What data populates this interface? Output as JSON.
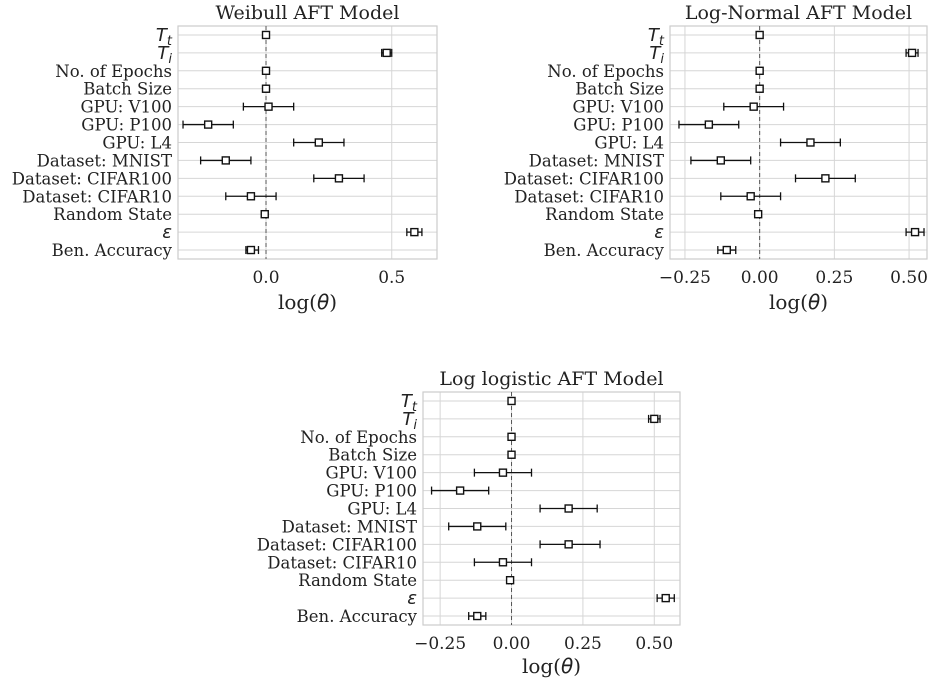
{
  "xlabel": {
    "prefix": "log(",
    "symbol": "θ",
    "suffix": ")"
  },
  "chart_data": [
    {
      "type": "scatter",
      "title": "Weibull AFT Model",
      "xlim": [
        -0.35,
        0.68
      ],
      "xticks": [
        "0.0",
        "0.5"
      ],
      "xtick_values": [
        0.0,
        0.5
      ],
      "categories": [
        {
          "label": "T",
          "sub": "t",
          "math": true
        },
        {
          "label": "T",
          "sub": "i",
          "math": true
        },
        {
          "label": "No. of Epochs"
        },
        {
          "label": "Batch Size"
        },
        {
          "label": "GPU: V100"
        },
        {
          "label": "GPU: P100"
        },
        {
          "label": "GPU: L4"
        },
        {
          "label": "Dataset: MNIST"
        },
        {
          "label": "Dataset: CIFAR100"
        },
        {
          "label": "Dataset: CIFAR10"
        },
        {
          "label": "Random State"
        },
        {
          "label": "ε",
          "math": true
        },
        {
          "label": "Ben. Accuracy"
        }
      ],
      "values": [
        0.0,
        0.48,
        0.0,
        0.0,
        0.01,
        -0.23,
        0.21,
        -0.16,
        0.29,
        -0.06,
        -0.005,
        0.59,
        -0.06
      ],
      "ci_low": [
        -0.005,
        0.46,
        -0.005,
        -0.005,
        -0.09,
        -0.33,
        0.11,
        -0.26,
        0.19,
        -0.16,
        -0.01,
        0.56,
        -0.08
      ],
      "ci_high": [
        0.005,
        0.5,
        0.005,
        0.005,
        0.11,
        -0.13,
        0.31,
        -0.06,
        0.39,
        0.04,
        0.0,
        0.62,
        -0.03
      ]
    },
    {
      "type": "scatter",
      "title": "Log-Normal AFT Model",
      "xlim": [
        -0.3,
        0.56
      ],
      "xticks": [
        "−0.25",
        "0.00",
        "0.25",
        "0.50"
      ],
      "xtick_values": [
        -0.25,
        0.0,
        0.25,
        0.5
      ],
      "categories": [
        {
          "label": "T",
          "sub": "t",
          "math": true
        },
        {
          "label": "T",
          "sub": "i",
          "math": true
        },
        {
          "label": "No. of Epochs"
        },
        {
          "label": "Batch Size"
        },
        {
          "label": "GPU: V100"
        },
        {
          "label": "GPU: P100"
        },
        {
          "label": "GPU: L4"
        },
        {
          "label": "Dataset: MNIST"
        },
        {
          "label": "Dataset: CIFAR100"
        },
        {
          "label": "Dataset: CIFAR10"
        },
        {
          "label": "Random State"
        },
        {
          "label": "ε",
          "math": true
        },
        {
          "label": "Ben. Accuracy"
        }
      ],
      "values": [
        0.0,
        0.51,
        0.0,
        0.0,
        -0.02,
        -0.17,
        0.17,
        -0.13,
        0.22,
        -0.03,
        -0.005,
        0.52,
        -0.11
      ],
      "ci_low": [
        -0.005,
        0.49,
        -0.005,
        -0.005,
        -0.12,
        -0.27,
        0.07,
        -0.23,
        0.12,
        -0.13,
        -0.01,
        0.49,
        -0.14
      ],
      "ci_high": [
        0.005,
        0.53,
        0.005,
        0.005,
        0.08,
        -0.07,
        0.27,
        -0.03,
        0.32,
        0.07,
        0.0,
        0.55,
        -0.08
      ]
    },
    {
      "type": "scatter",
      "title": "Log logistic AFT Model",
      "xlim": [
        -0.31,
        0.59
      ],
      "xticks": [
        "−0.25",
        "0.00",
        "0.25",
        "0.50"
      ],
      "xtick_values": [
        -0.25,
        0.0,
        0.25,
        0.5
      ],
      "categories": [
        {
          "label": "T",
          "sub": "t",
          "math": true
        },
        {
          "label": "T",
          "sub": "i",
          "math": true
        },
        {
          "label": "No. of Epochs"
        },
        {
          "label": "Batch Size"
        },
        {
          "label": "GPU: V100"
        },
        {
          "label": "GPU: P100"
        },
        {
          "label": "GPU: L4"
        },
        {
          "label": "Dataset: MNIST"
        },
        {
          "label": "Dataset: CIFAR100"
        },
        {
          "label": "Dataset: CIFAR10"
        },
        {
          "label": "Random State"
        },
        {
          "label": "ε",
          "math": true
        },
        {
          "label": "Ben. Accuracy"
        }
      ],
      "values": [
        0.0,
        0.5,
        0.0,
        0.0,
        -0.03,
        -0.18,
        0.2,
        -0.12,
        0.2,
        -0.03,
        -0.005,
        0.54,
        -0.12
      ],
      "ci_low": [
        -0.005,
        0.48,
        -0.005,
        -0.005,
        -0.13,
        -0.28,
        0.1,
        -0.22,
        0.1,
        -0.13,
        -0.01,
        0.51,
        -0.15
      ],
      "ci_high": [
        0.005,
        0.52,
        0.005,
        0.005,
        0.07,
        -0.08,
        0.3,
        -0.02,
        0.31,
        0.07,
        0.0,
        0.57,
        -0.09
      ]
    }
  ]
}
